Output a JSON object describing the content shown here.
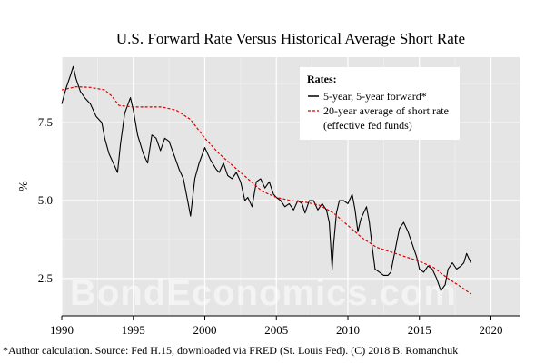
{
  "chart_data": {
    "type": "line",
    "title": "U.S. Forward Rate Versus Historical Average Short Rate",
    "xlabel": "",
    "ylabel": "%",
    "xlim": [
      1990,
      2022
    ],
    "ylim": [
      1.3,
      9.6
    ],
    "x_ticks": [
      1990,
      1995,
      2000,
      2005,
      2010,
      2015,
      2020
    ],
    "y_ticks": [
      2.5,
      5.0,
      7.5
    ],
    "y_tick_labels": [
      "2.5",
      "5.0",
      "7.5"
    ],
    "grid": true,
    "legend": {
      "title": "Rates:",
      "placement": "top-right",
      "entries": [
        "5-year, 5-year forward*",
        "20-year average of short rate",
        "(effective fed funds)"
      ]
    },
    "series": [
      {
        "name": "5-year, 5-year forward*",
        "color": "#000000",
        "style": "solid",
        "x": [
          1990.0,
          1990.3,
          1990.6,
          1990.8,
          1991.0,
          1991.3,
          1991.6,
          1992.0,
          1992.4,
          1992.8,
          1993.0,
          1993.3,
          1993.6,
          1993.9,
          1994.1,
          1994.4,
          1994.8,
          1995.0,
          1995.3,
          1995.7,
          1996.0,
          1996.3,
          1996.6,
          1996.9,
          1997.2,
          1997.5,
          1997.9,
          1998.2,
          1998.5,
          1998.8,
          1999.0,
          1999.3,
          1999.6,
          2000.0,
          2000.4,
          2000.8,
          2001.0,
          2001.3,
          2001.6,
          2001.9,
          2002.2,
          2002.5,
          2002.8,
          2003.0,
          2003.3,
          2003.6,
          2003.9,
          2004.2,
          2004.5,
          2004.8,
          2005.0,
          2005.3,
          2005.6,
          2005.9,
          2006.2,
          2006.5,
          2006.8,
          2007.0,
          2007.3,
          2007.6,
          2007.9,
          2008.2,
          2008.5,
          2008.7,
          2008.9,
          2009.0,
          2009.2,
          2009.4,
          2009.7,
          2010.0,
          2010.3,
          2010.5,
          2010.7,
          2010.9,
          2011.1,
          2011.3,
          2011.5,
          2011.7,
          2011.9,
          2012.2,
          2012.5,
          2012.8,
          2013.0,
          2013.3,
          2013.6,
          2013.9,
          2014.2,
          2014.5,
          2014.8,
          2015.0,
          2015.3,
          2015.6,
          2015.9,
          2016.2,
          2016.5,
          2016.8,
          2017.0,
          2017.3,
          2017.6,
          2017.9,
          2018.1,
          2018.3,
          2018.6
        ],
        "y": [
          8.1,
          8.6,
          9.0,
          9.3,
          8.9,
          8.5,
          8.3,
          8.1,
          7.7,
          7.5,
          7.0,
          6.5,
          6.2,
          5.9,
          6.8,
          7.8,
          8.3,
          7.9,
          7.1,
          6.5,
          6.2,
          7.1,
          7.0,
          6.6,
          7.0,
          6.9,
          6.4,
          6.0,
          5.7,
          5.0,
          4.5,
          5.7,
          6.2,
          6.7,
          6.3,
          6.0,
          5.9,
          6.2,
          5.8,
          5.7,
          5.9,
          5.6,
          5.0,
          5.1,
          4.8,
          5.6,
          5.7,
          5.4,
          5.6,
          5.2,
          5.1,
          5.0,
          4.8,
          4.9,
          4.7,
          5.0,
          4.9,
          4.6,
          5.0,
          5.0,
          4.7,
          4.9,
          4.7,
          4.3,
          2.8,
          3.6,
          4.6,
          5.0,
          5.0,
          4.9,
          5.2,
          4.7,
          4.0,
          4.4,
          4.6,
          4.8,
          4.3,
          3.5,
          2.8,
          2.7,
          2.6,
          2.6,
          2.7,
          3.4,
          4.1,
          4.3,
          4.0,
          3.6,
          3.2,
          2.8,
          2.7,
          2.9,
          2.8,
          2.5,
          2.1,
          2.3,
          2.8,
          3.0,
          2.8,
          2.9,
          3.0,
          3.3,
          3.0
        ]
      },
      {
        "name": "20-year average of short rate",
        "color": "#dd0000",
        "style": "dashed",
        "x": [
          1990.0,
          1991.0,
          1992.0,
          1993.0,
          1993.5,
          1994.0,
          1995.0,
          1996.0,
          1997.0,
          1998.0,
          1999.0,
          2000.0,
          2001.0,
          2002.0,
          2003.0,
          2004.0,
          2005.0,
          2006.0,
          2007.0,
          2008.0,
          2009.0,
          2010.0,
          2011.0,
          2012.0,
          2013.0,
          2014.0,
          2015.0,
          2016.0,
          2017.0,
          2018.0,
          2018.6
        ],
        "y": [
          8.55,
          8.65,
          8.63,
          8.55,
          8.35,
          8.05,
          8.0,
          8.0,
          8.0,
          7.9,
          7.6,
          7.0,
          6.5,
          6.1,
          5.7,
          5.3,
          5.1,
          5.0,
          4.95,
          4.85,
          4.6,
          4.2,
          3.8,
          3.5,
          3.35,
          3.2,
          3.05,
          2.85,
          2.5,
          2.2,
          2.0
        ]
      }
    ],
    "watermark": "BondEconomics.com",
    "caption": "*Author calculation. Source: Fed H.15, downloaded via FRED (St. Louis Fed). (C) 2018 B. Romanchuk"
  }
}
